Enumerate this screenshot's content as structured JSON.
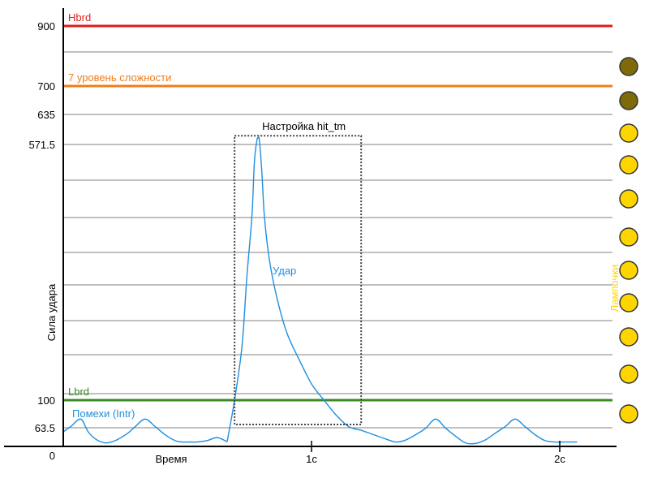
{
  "chart_data": {
    "type": "line",
    "ylabel": "Сила удара",
    "xlabel": "Время",
    "y_ticks": [
      "900",
      "700",
      "635",
      "571.5",
      "100",
      "63.5",
      "0"
    ],
    "y_tick_values": [
      900,
      700,
      635,
      571.5,
      100,
      63.5,
      0
    ],
    "x_ticks": [
      "1с",
      "2с"
    ],
    "x_tick_values": [
      1,
      2
    ],
    "xlim": [
      0,
      2.07
    ],
    "ylim": [
      0,
      900
    ],
    "grid": true,
    "thresholds": [
      {
        "label": "Hbrd",
        "value": 900,
        "color": "#e31b1b"
      },
      {
        "label": "7 уровень сложности",
        "value": 700,
        "color": "#f07d1a"
      },
      {
        "label": "Lbrd",
        "value": 100,
        "color": "#3a8a26"
      }
    ],
    "hit_window": {
      "label": "Настройка hit_tm",
      "x_start": 0.69,
      "x_end": 1.2,
      "y_top": 590
    },
    "series": [
      {
        "name": "Удар",
        "color": "#1e8fe0",
        "x": [
          0.66,
          0.69,
          0.72,
          0.74,
          0.76,
          0.77,
          0.78,
          0.785,
          0.79,
          0.8,
          0.81,
          0.83,
          0.86,
          0.9,
          0.95,
          1.0,
          1.05,
          1.1,
          1.15,
          1.2
        ],
        "y": [
          16,
          100,
          200,
          330,
          440,
          540,
          580,
          585,
          580,
          520,
          440,
          360,
          290,
          225,
          175,
          130,
          100,
          80,
          65,
          55
        ]
      },
      {
        "name": "Помехи (Intr)",
        "color": "#1e8fe0",
        "x": [
          0.0,
          0.03,
          0.07,
          0.1,
          0.13,
          0.17,
          0.21,
          0.26,
          0.29,
          0.33,
          0.37,
          0.41,
          0.45,
          0.48,
          0.51,
          0.54,
          0.58,
          0.62,
          0.66,
          1.2,
          1.25,
          1.3,
          1.34,
          1.38,
          1.42,
          1.46,
          1.5,
          1.54,
          1.58,
          1.62,
          1.66,
          1.7,
          1.74,
          1.78,
          1.82,
          1.86,
          1.9,
          1.94,
          1.98,
          2.02,
          2.07
        ],
        "y": [
          50,
          65,
          75,
          50,
          25,
          12,
          20,
          45,
          65,
          75,
          65,
          40,
          20,
          15,
          15,
          15,
          20,
          30,
          16,
          55,
          40,
          25,
          15,
          22,
          40,
          62,
          75,
          62,
          35,
          12,
          10,
          22,
          45,
          65,
          75,
          65,
          40,
          20,
          15,
          15,
          15
        ]
      }
    ]
  },
  "annotations": {
    "udar": "Удар",
    "intr": "Помехи (Intr)",
    "hit_tm": "Настройка hit_tm",
    "lamps": "Лампочки"
  },
  "lamps": [
    {
      "state": "off",
      "color": "#7f6a0a"
    },
    {
      "state": "off",
      "color": "#7f6a0a"
    },
    {
      "state": "on",
      "color": "#ffd500"
    },
    {
      "state": "on",
      "color": "#ffd500"
    },
    {
      "state": "on",
      "color": "#ffd500"
    },
    {
      "state": "on",
      "color": "#ffd500"
    },
    {
      "state": "on",
      "color": "#ffd500"
    },
    {
      "state": "on",
      "color": "#ffd500"
    },
    {
      "state": "on",
      "color": "#ffd500"
    },
    {
      "state": "on",
      "color": "#ffd500"
    },
    {
      "state": "on",
      "color": "#ffd500"
    }
  ],
  "colors": {
    "axis": "#000000",
    "grid": "#808080",
    "lamp_label": "#ffd500",
    "hit_box": "#444444"
  }
}
